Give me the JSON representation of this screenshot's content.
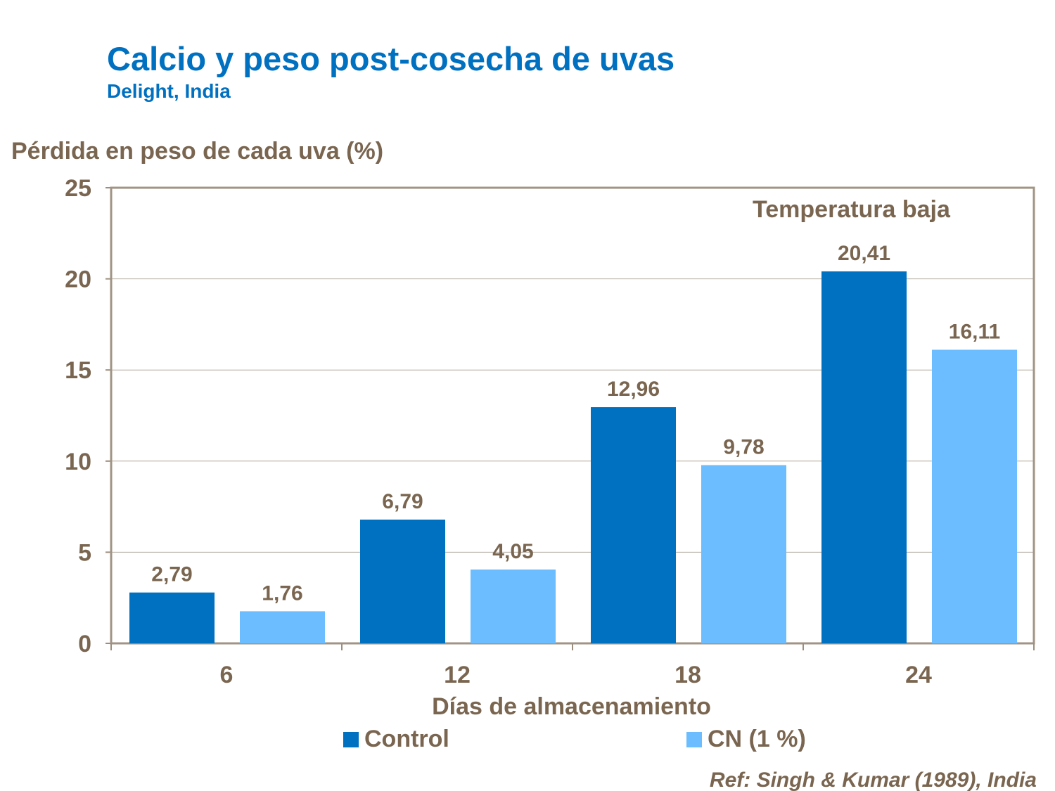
{
  "title": "Calcio y peso post-cosecha de uvas",
  "subtitle": "Delight, India",
  "reference": "Ref: Singh & Kumar (1989), India",
  "chart_data": {
    "type": "bar",
    "title": "Calcio y peso post-cosecha de uvas",
    "subtitle": "Delight, India",
    "xlabel": "Días de almacenamiento",
    "ylabel": "Pérdida en peso de cada uva (%)",
    "annotation": "Temperatura baja",
    "categories": [
      "6",
      "12",
      "18",
      "24"
    ],
    "ylim": [
      0,
      25
    ],
    "yticks": [
      0,
      5,
      10,
      15,
      20,
      25
    ],
    "grid": true,
    "legend_position": "bottom",
    "series": [
      {
        "name": "Control",
        "color": "#0070C0",
        "values": [
          2.79,
          6.79,
          12.96,
          20.41
        ],
        "labels": [
          "2,79",
          "6,79",
          "12,96",
          "20,41"
        ]
      },
      {
        "name": "CN (1 %)",
        "color": "#6BBDFF",
        "values": [
          1.76,
          4.05,
          9.78,
          16.11
        ],
        "labels": [
          "1,76",
          "4,05",
          "9,78",
          "16,11"
        ]
      }
    ]
  }
}
